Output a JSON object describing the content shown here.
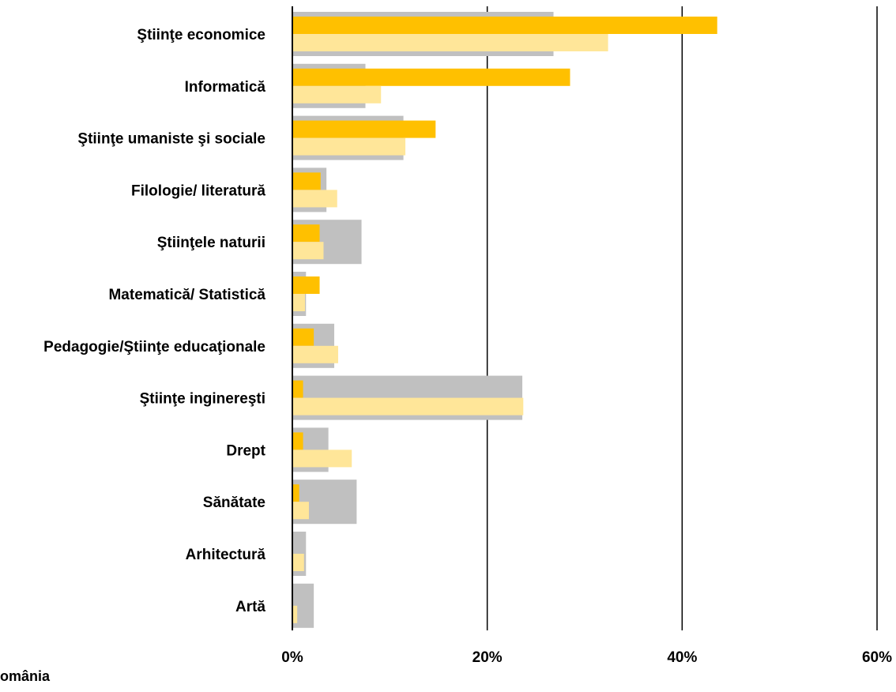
{
  "chart_data": {
    "type": "bar",
    "orientation": "horizontal",
    "categories": [
      "Ştiinţe economice",
      "Informatică",
      "Ştiinţe umaniste şi sociale",
      "Filologie/ literatură",
      "Ştiinţele naturii",
      "Matematică/ Statistică",
      "Pedagogie/Ştiinţe educaţionale",
      "Ştiinţe inginereşti",
      "Drept",
      "Sănătate",
      "Arhitectură",
      "Artă"
    ],
    "series": [
      {
        "color": "#c0c0c0",
        "values": [
          26.8,
          7.5,
          11.4,
          3.5,
          7.1,
          1.4,
          4.3,
          23.6,
          3.7,
          6.6,
          1.4,
          2.2
        ]
      },
      {
        "color": "#ffc000",
        "values": [
          43.6,
          28.5,
          14.7,
          2.9,
          2.8,
          2.8,
          2.2,
          1.1,
          1.1,
          0.7,
          0.0,
          0.0
        ]
      },
      {
        "color": "#ffe699",
        "values": [
          32.4,
          9.1,
          11.6,
          4.6,
          3.2,
          1.3,
          4.7,
          23.7,
          6.1,
          1.7,
          1.2,
          0.5
        ]
      }
    ],
    "xlim": [
      0,
      60
    ],
    "x_ticks": [
      0,
      20,
      40,
      60
    ],
    "x_tick_labels": [
      "0%",
      "20%",
      "40%",
      "60%"
    ],
    "grid": "vertical",
    "legend_text": "omânia"
  }
}
